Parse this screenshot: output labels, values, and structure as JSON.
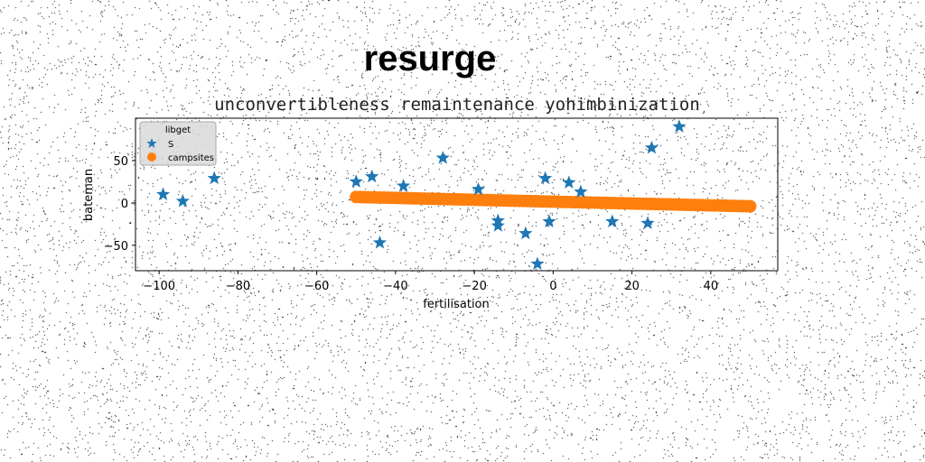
{
  "chart_data": {
    "type": "scatter",
    "suptitle": "resurge",
    "title": "unconvertibleness remaintenance yohimbinization",
    "xlabel": "fertilisation",
    "ylabel": "bateman",
    "xlim": [
      -106,
      57
    ],
    "ylim": [
      -80,
      100
    ],
    "xticks": [
      -100,
      -80,
      -60,
      -40,
      -20,
      0,
      20,
      40
    ],
    "yticks": [
      -50,
      0,
      50
    ],
    "xtick_labels": [
      "−100",
      "−80",
      "−60",
      "−40",
      "−20",
      "0",
      "20",
      "40"
    ],
    "ytick_labels": [
      "−50",
      "0",
      "50"
    ],
    "grid": false,
    "legend": {
      "title": "libget",
      "placement": "top-left"
    },
    "series": [
      {
        "name": "S",
        "marker": "star",
        "color": "#1f77b4",
        "points": [
          [
            -99,
            10
          ],
          [
            -94,
            2
          ],
          [
            -86,
            29
          ],
          [
            -50,
            25
          ],
          [
            -46,
            31
          ],
          [
            -44,
            -47
          ],
          [
            -38,
            20
          ],
          [
            -28,
            53
          ],
          [
            -19,
            16
          ],
          [
            -14,
            -27
          ],
          [
            -14,
            -21
          ],
          [
            -7,
            -36
          ],
          [
            -4,
            -72
          ],
          [
            -2,
            29
          ],
          [
            -1,
            -22
          ],
          [
            4,
            24
          ],
          [
            7,
            13
          ],
          [
            15,
            -22
          ],
          [
            24,
            -24
          ],
          [
            25,
            65
          ],
          [
            32,
            90
          ]
        ]
      },
      {
        "name": "campsites",
        "marker": "circle",
        "color": "#ff7f0e",
        "x_start": -50,
        "x_end": 50,
        "y_start": 7,
        "y_end": -4,
        "count": 100
      }
    ]
  },
  "colors": {
    "background": "#ffffff",
    "axes_frame": "#000000",
    "noise": "#000000"
  }
}
